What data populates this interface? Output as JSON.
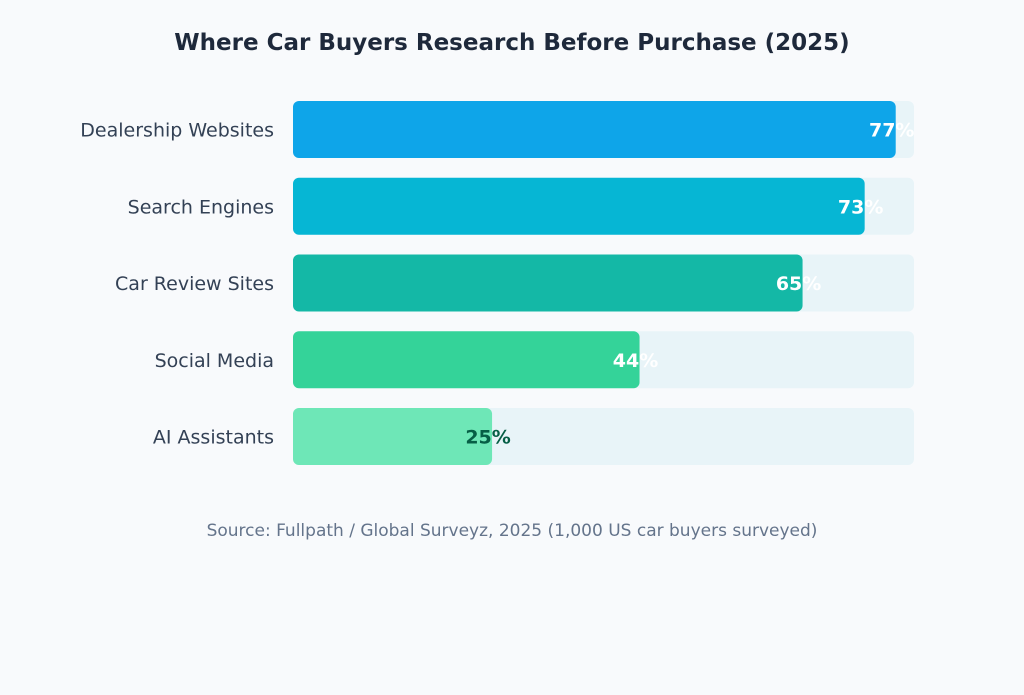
{
  "chart_data": {
    "type": "bar",
    "orientation": "horizontal",
    "title": "Where Car Buyers Research Before Purchase (2025)",
    "categories": [
      "Dealership Websites",
      "Search Engines",
      "Car Review Sites",
      "Social Media",
      "AI Assistants"
    ],
    "values": [
      77,
      73,
      65,
      44,
      25
    ],
    "value_labels": [
      "77%",
      "73%",
      "65%",
      "44%",
      "25%"
    ],
    "unit": "%",
    "xlim": [
      0,
      80
    ],
    "grid": false,
    "colors": [
      "#0ea5e9",
      "#06b6d4",
      "#14b8a6",
      "#34d399",
      "#6ee7b7"
    ],
    "label_colors": [
      "#ffffff",
      "#ffffff",
      "#ffffff",
      "#ffffff",
      "#065f46"
    ],
    "track_color": "#e8f4f8",
    "source": "Source: Fullpath / Global Surveyz, 2025 (1,000 US car buyers surveyed)"
  }
}
